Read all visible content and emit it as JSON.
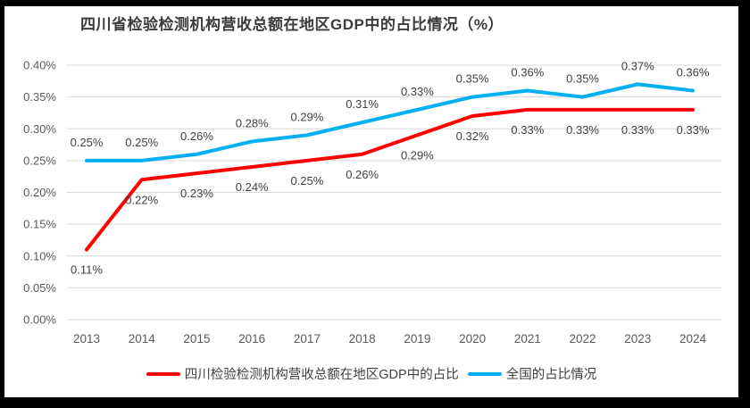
{
  "title": "四川省检验检测机构营收总额在地区GDP中的占比情况（%）",
  "colors": {
    "background": "#FFFFFF",
    "frame_border": "#000000",
    "grid": "#D9D9D9",
    "axis_text": "#595959",
    "label_text": "#404040",
    "title_text": "#3B3B3B",
    "sichuan_red": "#FF0000",
    "national_blue": "#00B0F0"
  },
  "chart_data": {
    "type": "line",
    "title": "四川省检验检测机构营收总额在地区GDP中的占比情况（%）",
    "xlabel": "",
    "ylabel": "",
    "grid": true,
    "legend_position": "bottom",
    "ylim": [
      0,
      0.4
    ],
    "yticks": [
      "0.00%",
      "0.05%",
      "0.10%",
      "0.15%",
      "0.20%",
      "0.25%",
      "0.30%",
      "0.35%",
      "0.40%"
    ],
    "categories": [
      "2013",
      "2014",
      "2015",
      "2016",
      "2017",
      "2018",
      "2019",
      "2020",
      "2021",
      "2022",
      "2023",
      "2024"
    ],
    "series": [
      {
        "name": "四川检验检测机构营收总额在地区GDP中的占比",
        "color": "#FF0000",
        "label_position": "below",
        "values": [
          0.11,
          0.22,
          0.23,
          0.24,
          0.25,
          0.26,
          0.29,
          0.32,
          0.33,
          0.33,
          0.33,
          0.33
        ],
        "labels": [
          "0.11%",
          "0.22%",
          "0.23%",
          "0.24%",
          "0.25%",
          "0.26%",
          "0.29%",
          "0.32%",
          "0.33%",
          "0.33%",
          "0.33%",
          "0.33%"
        ]
      },
      {
        "name": "全国的占比情况",
        "color": "#00B0F0",
        "label_position": "above",
        "values": [
          0.25,
          0.25,
          0.26,
          0.28,
          0.29,
          0.31,
          0.33,
          0.35,
          0.36,
          0.35,
          0.37,
          0.36
        ],
        "labels": [
          "0.25%",
          "0.25%",
          "0.26%",
          "0.28%",
          "0.29%",
          "0.31%",
          "0.33%",
          "0.35%",
          "0.36%",
          "0.35%",
          "0.37%",
          "0.36%"
        ]
      }
    ]
  }
}
